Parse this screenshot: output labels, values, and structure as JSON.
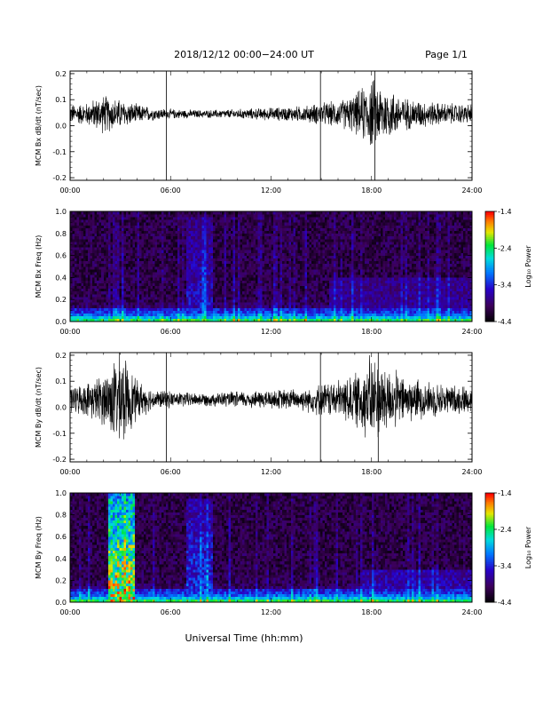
{
  "header": {
    "title": "2018/12/12   00:00−24:00 UT",
    "page": "Page 1/1"
  },
  "xaxis": {
    "label": "Universal Time (hh:mm)",
    "ticks": [
      "00:00",
      "06:00",
      "12:00",
      "18:00",
      "24:00"
    ],
    "range_hours": [
      0,
      24
    ]
  },
  "colorbar": {
    "ticks": [
      "-1.4",
      "-2.4",
      "-3.4",
      "-4.4"
    ],
    "label": "Log₁₀ Power",
    "range": [
      -4.4,
      -1.4
    ]
  },
  "colors": {
    "trace": "#000000",
    "axis": "#000000",
    "background": "#ffffff"
  },
  "chart_data": [
    {
      "type": "line",
      "ylabel": "MCM Bx dB/dt (nT/sec)",
      "yticks": [
        "0.2",
        "0.1",
        "0.0",
        "-0.1",
        "-0.2"
      ],
      "ylim": [
        -0.21,
        0.21
      ],
      "xlim": [
        0,
        24
      ],
      "baseline": 0.045,
      "spikes_hours": [
        5.75,
        14.95,
        18.2
      ],
      "envelope": {
        "x": [
          0,
          1,
          2,
          3,
          4,
          5,
          6,
          8,
          10,
          12,
          14,
          15,
          16,
          17,
          18,
          19,
          20,
          22,
          24
        ],
        "amp": [
          0.03,
          0.035,
          0.06,
          0.045,
          0.03,
          0.02,
          0.015,
          0.012,
          0.015,
          0.02,
          0.025,
          0.035,
          0.04,
          0.06,
          0.11,
          0.08,
          0.05,
          0.035,
          0.03
        ]
      }
    },
    {
      "type": "heatmap",
      "ylabel": "MCM Bx Freq (Hz)",
      "yticks": [
        "1.0",
        "0.8",
        "0.6",
        "0.4",
        "0.2",
        "0.0"
      ],
      "ylim": [
        0,
        1
      ],
      "xlim": [
        0,
        24
      ],
      "zrange": [
        -4.4,
        -1.4
      ],
      "events": [
        {
          "x": [
            7,
            8.5
          ],
          "fmax": 0.95,
          "level": -3.4
        },
        {
          "x": [
            15.5,
            24
          ],
          "fmax": 0.4,
          "level": -3.6
        }
      ]
    },
    {
      "type": "line",
      "ylabel": "MCM By dB/dt (nT/sec)",
      "yticks": [
        "0.2",
        "0.1",
        "0.0",
        "-0.1",
        "-0.2"
      ],
      "ylim": [
        -0.21,
        0.21
      ],
      "xlim": [
        0,
        24
      ],
      "baseline": 0.03,
      "spikes_hours": [
        5.75,
        14.95,
        18.4
      ],
      "envelope": {
        "x": [
          0,
          1,
          2,
          3,
          4,
          5,
          6,
          8,
          10,
          12,
          14,
          15,
          16,
          17,
          18,
          19,
          20,
          22,
          24
        ],
        "amp": [
          0.04,
          0.05,
          0.08,
          0.15,
          0.06,
          0.03,
          0.025,
          0.02,
          0.025,
          0.03,
          0.035,
          0.05,
          0.06,
          0.08,
          0.14,
          0.1,
          0.07,
          0.05,
          0.04
        ]
      }
    },
    {
      "type": "heatmap",
      "ylabel": "MCM By Freq (Hz)",
      "yticks": [
        "1.0",
        "0.8",
        "0.6",
        "0.4",
        "0.2",
        "0.0"
      ],
      "ylim": [
        0,
        1
      ],
      "xlim": [
        0,
        24
      ],
      "zrange": [
        -4.4,
        -1.4
      ],
      "events": [
        {
          "x": [
            2.2,
            3.9
          ],
          "fmax": 1.0,
          "level": -1.8
        },
        {
          "x": [
            7,
            8.5
          ],
          "fmax": 0.95,
          "level": -3.2
        },
        {
          "x": [
            17.5,
            24
          ],
          "fmax": 0.3,
          "level": -3.5
        }
      ]
    }
  ]
}
